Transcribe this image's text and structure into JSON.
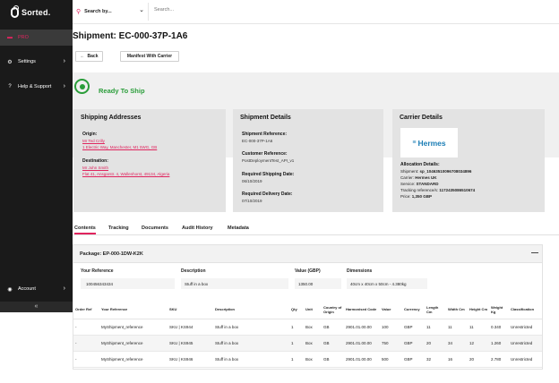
{
  "sidebar": {
    "logo": "Sorted.",
    "items": [
      {
        "label": "PRO",
        "icon": "truck-icon"
      },
      {
        "label": "Settings",
        "icon": "gear-icon"
      },
      {
        "label": "Help & Support",
        "icon": "help-icon"
      },
      {
        "label": "Account",
        "icon": "user-icon"
      }
    ],
    "collapse": "«"
  },
  "topbar": {
    "search_by": "Search by...",
    "search_placeholder": "Search..."
  },
  "page": {
    "title": "Shipment: EC-000-37P-1A6",
    "back_label": "Back",
    "manifest_label": "Manifest With Carrier",
    "status": "Ready To Ship"
  },
  "addresses": {
    "title": "Shipping Addresses",
    "origin_label": "Origin:",
    "origin_name": "Mr Ted Crilly",
    "origin_addr": "1 Electric Way, Manchester, M1 5WG, GB",
    "dest_label": "Destination:",
    "dest_name": "Mr John Smith",
    "dest_addr": "Flat 41, Ansgarstr. 4, Wallenhorst, 49134, Algeria"
  },
  "shipment_details": {
    "title": "Shipment Details",
    "ref_label": "Shipment Reference:",
    "ref_value": "EC-000-37P-1A6",
    "cust_label": "Customer Reference:",
    "cust_value": "PostDeploymentTest_API_v1",
    "ship_date_label": "Required Shipping Date:",
    "ship_date_value": "06/10/2019",
    "deliv_date_label": "Required Delivery Date:",
    "deliv_date_value": "07/10/2019"
  },
  "carrier": {
    "title": "Carrier Details",
    "logo_text": "Hermes",
    "alloc_title": "Allocation Details:",
    "shipment_label": "Shipment:",
    "shipment_value": "sp_10463510096708034896",
    "carrier_label": "Carrier:",
    "carrier_value": "Hermes UK",
    "service_label": "Service:",
    "service_value": "STANDARD",
    "tracking_label": "Tracking reference/s:",
    "tracking_value": "1172435086510674",
    "price_label": "Price:",
    "price_value": "1,350 GBP"
  },
  "tabs": [
    "Contents",
    "Tracking",
    "Documents",
    "Audit History",
    "Metadata"
  ],
  "package": {
    "title": "Package: EP-000-1DW-K2K",
    "toggle": "—",
    "your_ref_label": "Your Reference",
    "your_ref_value": "100456343434",
    "desc_label": "Description",
    "desc_value": "Stuff in a box",
    "value_label": "Value (GBP)",
    "value_value": "1350.00",
    "dims_label": "Dimensions",
    "dims_value": "40cm x 40cm x 50cm - 4.380kg"
  },
  "table": {
    "headers": [
      "Order Ref",
      "Your Reference",
      "SKU",
      "Description",
      "Qty",
      "Unit",
      "Country of Origin",
      "Harmonised Code",
      "Value",
      "Currency",
      "Length Cm",
      "Width Cm",
      "Height Cm",
      "Weight Kg",
      "Classification"
    ],
    "rows": [
      [
        "-",
        "MyShipment_reference",
        "SKU | KS944",
        "Stuff in a box",
        "1",
        "Box",
        "GB",
        "2901.01.00.00",
        "100",
        "GBP",
        "11",
        "11",
        "11",
        "0.340",
        "Unrestricted"
      ],
      [
        "-",
        "MyShipment_reference",
        "SKU | KS945",
        "Stuff in a box",
        "1",
        "Box",
        "GB",
        "2901.01.00.00",
        "750",
        "GBP",
        "20",
        "34",
        "12",
        "1.260",
        "Unrestricted"
      ],
      [
        "-",
        "MyShipment_reference",
        "SKU | KS946",
        "Stuff in a box",
        "1",
        "Box",
        "GB",
        "2901.01.00.00",
        "500",
        "GBP",
        "32",
        "16",
        "20",
        "2.780",
        "Unrestricted"
      ]
    ]
  },
  "colors": {
    "accent": "#e0245e",
    "success": "#2a9d3a",
    "sidebar": "#1a1a1a",
    "hermes": "#1a7db5"
  }
}
